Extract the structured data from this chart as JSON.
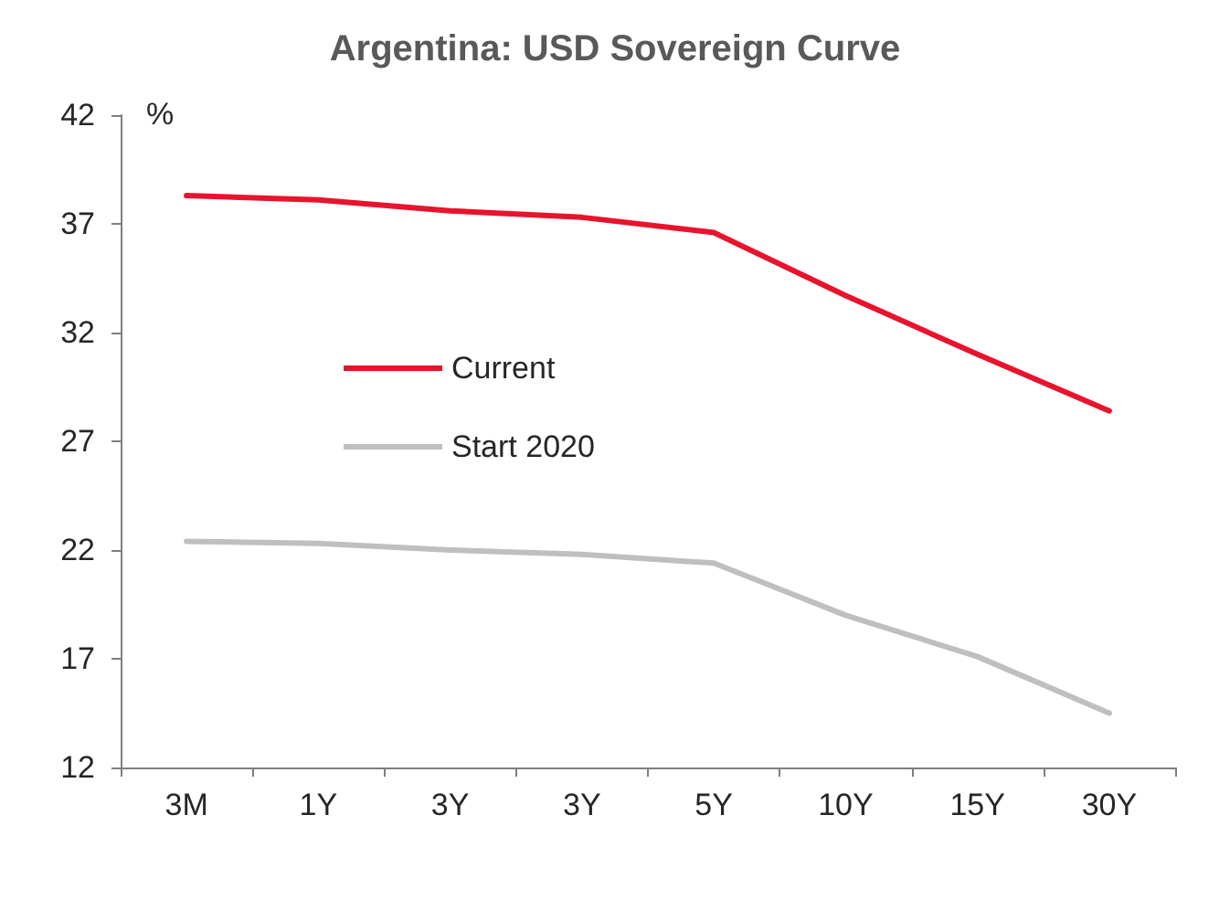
{
  "chart_data": {
    "type": "line",
    "title": "Argentina: USD Sovereign Curve",
    "ylabel": "%",
    "categories": [
      "3M",
      "1Y",
      "3Y",
      "3Y",
      "5Y",
      "10Y",
      "15Y",
      "30Y"
    ],
    "series": [
      {
        "name": "Current",
        "color": "#e8132d",
        "values": [
          38.3,
          38.1,
          37.6,
          37.3,
          36.6,
          33.7,
          31.0,
          28.4
        ]
      },
      {
        "name": "Start 2020",
        "color": "#bfbfbf",
        "values": [
          22.4,
          22.3,
          22.0,
          21.8,
          21.4,
          19.0,
          17.1,
          14.5
        ]
      }
    ],
    "ylim": [
      12,
      42
    ],
    "yticks": [
      12,
      17,
      22,
      27,
      32,
      37,
      42
    ],
    "grid": false,
    "legend": "center",
    "marker": "none",
    "line_style": "solid"
  }
}
